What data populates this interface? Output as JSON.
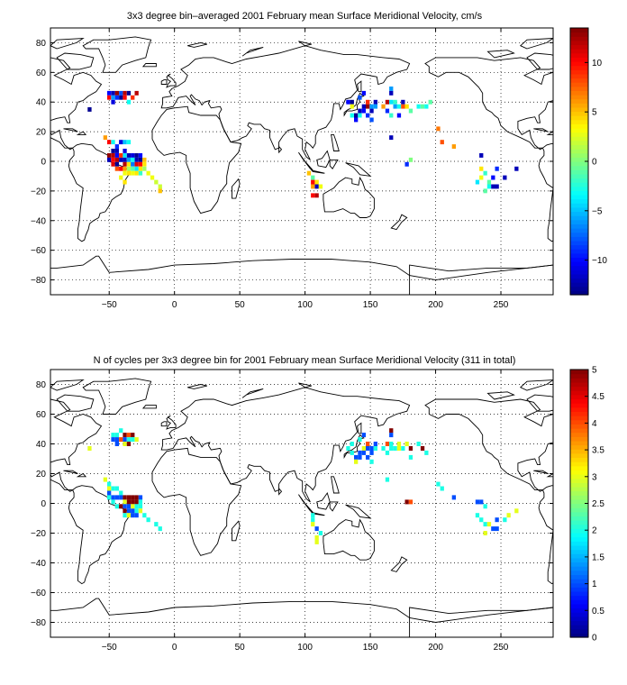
{
  "chart_data": [
    {
      "type": "heatmap",
      "title": "3x3 degree bin–averaged 2001 February mean Surface Meridional Velocity, cm/s",
      "xlim": [
        -95,
        290
      ],
      "ylim": [
        -90,
        90
      ],
      "x_ticks": [
        -50,
        0,
        50,
        100,
        150,
        200,
        250
      ],
      "y_ticks": [
        80,
        60,
        40,
        20,
        0,
        -20,
        -40,
        -60,
        -80
      ],
      "x_tick_labels": [
        "−50",
        "0",
        "50",
        "100",
        "150",
        "200",
        "250"
      ],
      "y_tick_labels": [
        "80",
        "60",
        "40",
        "20",
        "0",
        "−20",
        "−40",
        "−60",
        "−80"
      ],
      "grid": true,
      "colorbar": {
        "range": [
          -13.5,
          13.5
        ],
        "ticks": [
          10,
          5,
          0,
          -5,
          -10
        ],
        "tick_labels": [
          "10",
          "5",
          "0",
          "−5",
          "−10"
        ]
      },
      "points": [
        [
          -65,
          35,
          -13
        ],
        [
          -50,
          46,
          -10
        ],
        [
          -50,
          43,
          10
        ],
        [
          -47,
          46,
          -12
        ],
        [
          -47,
          43,
          -6
        ],
        [
          -47,
          40,
          -11
        ],
        [
          -44,
          46,
          13
        ],
        [
          -44,
          43,
          -9
        ],
        [
          -41,
          46,
          -8
        ],
        [
          -41,
          43,
          -13
        ],
        [
          -38,
          46,
          12
        ],
        [
          -38,
          43,
          10
        ],
        [
          -35,
          46,
          -13
        ],
        [
          -35,
          40,
          -3
        ],
        [
          -32,
          43,
          9
        ],
        [
          -29,
          46,
          12
        ],
        [
          -53,
          16,
          6
        ],
        [
          -50,
          13,
          10
        ],
        [
          -50,
          4,
          13
        ],
        [
          -50,
          1,
          -12
        ],
        [
          -47,
          13,
          -3
        ],
        [
          -47,
          7,
          -13
        ],
        [
          -47,
          4,
          12
        ],
        [
          -47,
          1,
          10
        ],
        [
          -47,
          -2,
          11
        ],
        [
          -44,
          10,
          -9
        ],
        [
          -44,
          7,
          -12
        ],
        [
          -44,
          4,
          -10
        ],
        [
          -44,
          1,
          12
        ],
        [
          -44,
          -2,
          -13
        ],
        [
          -44,
          -5,
          8
        ],
        [
          -41,
          13,
          -11
        ],
        [
          -41,
          4,
          9
        ],
        [
          -41,
          1,
          -12
        ],
        [
          -41,
          -5,
          10
        ],
        [
          -41,
          -11,
          3
        ],
        [
          -38,
          13,
          -5
        ],
        [
          -38,
          7,
          -11
        ],
        [
          -38,
          4,
          -4
        ],
        [
          -38,
          1,
          -12
        ],
        [
          -38,
          -2,
          12
        ],
        [
          -38,
          -5,
          6
        ],
        [
          -38,
          -8,
          3
        ],
        [
          -38,
          -14,
          4
        ],
        [
          -35,
          13,
          -3
        ],
        [
          -35,
          4,
          -12
        ],
        [
          -35,
          1,
          -6
        ],
        [
          -35,
          -2,
          4
        ],
        [
          -35,
          -5,
          1
        ],
        [
          -35,
          -8,
          4
        ],
        [
          -32,
          4,
          -11
        ],
        [
          -32,
          1,
          -3
        ],
        [
          -32,
          -2,
          -7
        ],
        [
          -32,
          -5,
          -1
        ],
        [
          -32,
          -8,
          3
        ],
        [
          -29,
          4,
          -13
        ],
        [
          -29,
          1,
          -12
        ],
        [
          -29,
          -2,
          11
        ],
        [
          -29,
          -5,
          -4
        ],
        [
          -29,
          -8,
          4
        ],
        [
          -26,
          4,
          -10
        ],
        [
          -26,
          1,
          -13
        ],
        [
          -26,
          -2,
          10
        ],
        [
          -26,
          -5,
          4
        ],
        [
          -26,
          -8,
          -2
        ],
        [
          -23,
          1,
          5
        ],
        [
          -23,
          -2,
          4
        ],
        [
          -23,
          -5,
          1
        ],
        [
          -20,
          -8,
          3
        ],
        [
          -17,
          -11,
          3
        ],
        [
          -14,
          -14,
          2
        ],
        [
          -11,
          -17,
          2
        ],
        [
          -11,
          -20,
          5
        ],
        [
          103,
          -8,
          5
        ],
        [
          106,
          -11,
          -1
        ],
        [
          106,
          -14,
          10
        ],
        [
          106,
          -17,
          6
        ],
        [
          106,
          -23,
          10
        ],
        [
          109,
          -14,
          4
        ],
        [
          109,
          -17,
          -12
        ],
        [
          109,
          -23,
          12
        ],
        [
          112,
          -17,
          3
        ],
        [
          133,
          40,
          -10
        ],
        [
          136,
          40,
          -13
        ],
        [
          136,
          37,
          3
        ],
        [
          136,
          31,
          -3
        ],
        [
          139,
          31,
          -13
        ],
        [
          139,
          28,
          -10
        ],
        [
          142,
          43,
          -8
        ],
        [
          142,
          34,
          -12
        ],
        [
          142,
          31,
          -3
        ],
        [
          145,
          46,
          -10
        ],
        [
          145,
          37,
          -12
        ],
        [
          145,
          34,
          -10
        ],
        [
          148,
          40,
          9
        ],
        [
          148,
          37,
          13
        ],
        [
          148,
          31,
          -9
        ],
        [
          151,
          37,
          -6
        ],
        [
          151,
          34,
          -12
        ],
        [
          151,
          28,
          -8
        ],
        [
          154,
          40,
          -12
        ],
        [
          154,
          37,
          -6
        ],
        [
          160,
          37,
          6
        ],
        [
          163,
          40,
          12
        ],
        [
          163,
          34,
          -9
        ],
        [
          166,
          49,
          -6
        ],
        [
          166,
          46,
          -12
        ],
        [
          166,
          40,
          -4
        ],
        [
          166,
          31,
          -2
        ],
        [
          166,
          16,
          -12
        ],
        [
          169,
          40,
          -2
        ],
        [
          169,
          37,
          -6
        ],
        [
          172,
          37,
          -3
        ],
        [
          172,
          31,
          -10
        ],
        [
          175,
          40,
          -12
        ],
        [
          175,
          37,
          8
        ],
        [
          178,
          37,
          4
        ],
        [
          181,
          34,
          -1
        ],
        [
          181,
          1,
          0
        ],
        [
          187,
          37,
          -3
        ],
        [
          190,
          37,
          -1
        ],
        [
          193,
          37,
          -3
        ],
        [
          196,
          40,
          -1
        ],
        [
          178,
          -2,
          -9
        ],
        [
          202,
          22,
          7
        ],
        [
          205,
          13,
          8
        ],
        [
          214,
          10,
          6
        ],
        [
          232,
          -14,
          -4
        ],
        [
          235,
          4,
          -12
        ],
        [
          235,
          -5,
          4
        ],
        [
          235,
          -11,
          3
        ],
        [
          238,
          -8,
          -2
        ],
        [
          238,
          -20,
          -1
        ],
        [
          241,
          -14,
          -1
        ],
        [
          241,
          -17,
          -3
        ],
        [
          244,
          -17,
          -12
        ],
        [
          244,
          -11,
          -10
        ],
        [
          247,
          -5,
          -9
        ],
        [
          247,
          -17,
          -12
        ],
        [
          253,
          -11,
          -12
        ],
        [
          262,
          -5,
          -12
        ]
      ]
    },
    {
      "type": "heatmap",
      "title": "N of cycles per 3x3 degree bin for 2001 February mean Surface Meridional Velocity (311 in total)",
      "xlim": [
        -95,
        290
      ],
      "ylim": [
        -90,
        90
      ],
      "x_ticks": [
        -50,
        0,
        50,
        100,
        150,
        200,
        250
      ],
      "y_ticks": [
        80,
        60,
        40,
        20,
        0,
        -20,
        -40,
        -60,
        -80
      ],
      "x_tick_labels": [
        "−50",
        "0",
        "50",
        "100",
        "150",
        "200",
        "250"
      ],
      "y_tick_labels": [
        "80",
        "60",
        "40",
        "20",
        "0",
        "−20",
        "−40",
        "−60",
        "−80"
      ],
      "grid": true,
      "colorbar": {
        "range": [
          0,
          5
        ],
        "ticks": [
          5,
          4.5,
          4,
          3.5,
          3,
          2.5,
          2,
          1.5,
          1,
          0.5,
          0
        ],
        "tick_labels": [
          "5",
          "4.5",
          "4",
          "3.5",
          "3",
          "2.5",
          "2",
          "1.5",
          "1",
          "0.5",
          "0"
        ]
      },
      "points": [
        [
          -65,
          37,
          3
        ],
        [
          -47,
          46,
          2
        ],
        [
          -47,
          43,
          1
        ],
        [
          -44,
          46,
          2
        ],
        [
          -44,
          43,
          1
        ],
        [
          -44,
          40,
          1
        ],
        [
          -41,
          43,
          4
        ],
        [
          -41,
          49,
          2
        ],
        [
          -38,
          46,
          5
        ],
        [
          -38,
          43,
          1
        ],
        [
          -38,
          40,
          3
        ],
        [
          -35,
          46,
          4
        ],
        [
          -35,
          43,
          2
        ],
        [
          -35,
          40,
          5
        ],
        [
          -32,
          46,
          5
        ],
        [
          -32,
          43,
          2
        ],
        [
          -29,
          43,
          3
        ],
        [
          -53,
          16,
          3
        ],
        [
          -50,
          13,
          2
        ],
        [
          -50,
          10,
          3
        ],
        [
          -50,
          7,
          1
        ],
        [
          -50,
          4,
          2
        ],
        [
          -47,
          4,
          1
        ],
        [
          -47,
          1,
          2
        ],
        [
          -44,
          4,
          1
        ],
        [
          -44,
          -2,
          2
        ],
        [
          -41,
          7,
          2
        ],
        [
          -41,
          4,
          1
        ],
        [
          -41,
          -2,
          5
        ],
        [
          -38,
          4,
          5
        ],
        [
          -38,
          1,
          3
        ],
        [
          -38,
          -2,
          1
        ],
        [
          -38,
          -5,
          5
        ],
        [
          -38,
          -8,
          2
        ],
        [
          -35,
          4,
          5
        ],
        [
          -35,
          1,
          5
        ],
        [
          -35,
          -2,
          1
        ],
        [
          -35,
          -5,
          1
        ],
        [
          -35,
          -8,
          3
        ],
        [
          -32,
          4,
          5
        ],
        [
          -32,
          1,
          5
        ],
        [
          -32,
          -2,
          3
        ],
        [
          -32,
          -5,
          1
        ],
        [
          -32,
          -8,
          1
        ],
        [
          -29,
          4,
          5
        ],
        [
          -29,
          1,
          5
        ],
        [
          -29,
          -2,
          2
        ],
        [
          -29,
          -5,
          2
        ],
        [
          -29,
          -8,
          1
        ],
        [
          -26,
          4,
          1
        ],
        [
          -26,
          1,
          2
        ],
        [
          -26,
          -2,
          2
        ],
        [
          -26,
          -5,
          3
        ],
        [
          -23,
          -8,
          2
        ],
        [
          -20,
          -11,
          2
        ],
        [
          -14,
          -14,
          2
        ],
        [
          -11,
          -17,
          2
        ],
        [
          -47,
          10,
          2
        ],
        [
          -44,
          10,
          2
        ],
        [
          106,
          -8,
          2
        ],
        [
          106,
          -11,
          2
        ],
        [
          106,
          -14,
          3
        ],
        [
          109,
          -17,
          1
        ],
        [
          109,
          -23,
          3
        ],
        [
          112,
          -20,
          2
        ],
        [
          109,
          -26,
          3
        ],
        [
          133,
          37,
          2
        ],
        [
          136,
          40,
          2
        ],
        [
          136,
          34,
          2
        ],
        [
          139,
          31,
          1
        ],
        [
          139,
          28,
          3
        ],
        [
          142,
          43,
          2
        ],
        [
          142,
          34,
          1
        ],
        [
          142,
          31,
          1
        ],
        [
          145,
          46,
          1
        ],
        [
          145,
          37,
          3
        ],
        [
          145,
          34,
          1
        ],
        [
          148,
          40,
          4
        ],
        [
          148,
          37,
          1
        ],
        [
          148,
          31,
          1
        ],
        [
          151,
          37,
          1
        ],
        [
          151,
          34,
          1
        ],
        [
          151,
          28,
          2
        ],
        [
          154,
          40,
          1
        ],
        [
          154,
          37,
          2
        ],
        [
          160,
          37,
          2
        ],
        [
          163,
          40,
          4
        ],
        [
          163,
          34,
          2
        ],
        [
          166,
          49,
          5
        ],
        [
          166,
          46,
          1
        ],
        [
          166,
          40,
          2
        ],
        [
          166,
          37,
          2
        ],
        [
          169,
          37,
          2
        ],
        [
          172,
          40,
          3
        ],
        [
          172,
          37,
          3
        ],
        [
          175,
          37,
          2
        ],
        [
          178,
          40,
          3
        ],
        [
          181,
          37,
          5
        ],
        [
          181,
          31,
          2
        ],
        [
          187,
          40,
          2
        ],
        [
          190,
          37,
          5
        ],
        [
          193,
          34,
          2
        ],
        [
          163,
          16,
          2
        ],
        [
          178,
          1,
          5
        ],
        [
          181,
          1,
          4
        ],
        [
          202,
          13,
          2
        ],
        [
          205,
          10,
          2
        ],
        [
          214,
          4,
          1
        ],
        [
          232,
          1,
          1
        ],
        [
          235,
          1,
          1
        ],
        [
          238,
          -2,
          2
        ],
        [
          232,
          -8,
          2
        ],
        [
          235,
          -11,
          2
        ],
        [
          238,
          -14,
          2
        ],
        [
          238,
          -20,
          3
        ],
        [
          241,
          -14,
          3
        ],
        [
          244,
          -17,
          1
        ],
        [
          247,
          -17,
          1
        ],
        [
          247,
          -11,
          1
        ],
        [
          253,
          -11,
          2
        ],
        [
          256,
          -8,
          3
        ],
        [
          262,
          -5,
          3
        ]
      ]
    }
  ]
}
